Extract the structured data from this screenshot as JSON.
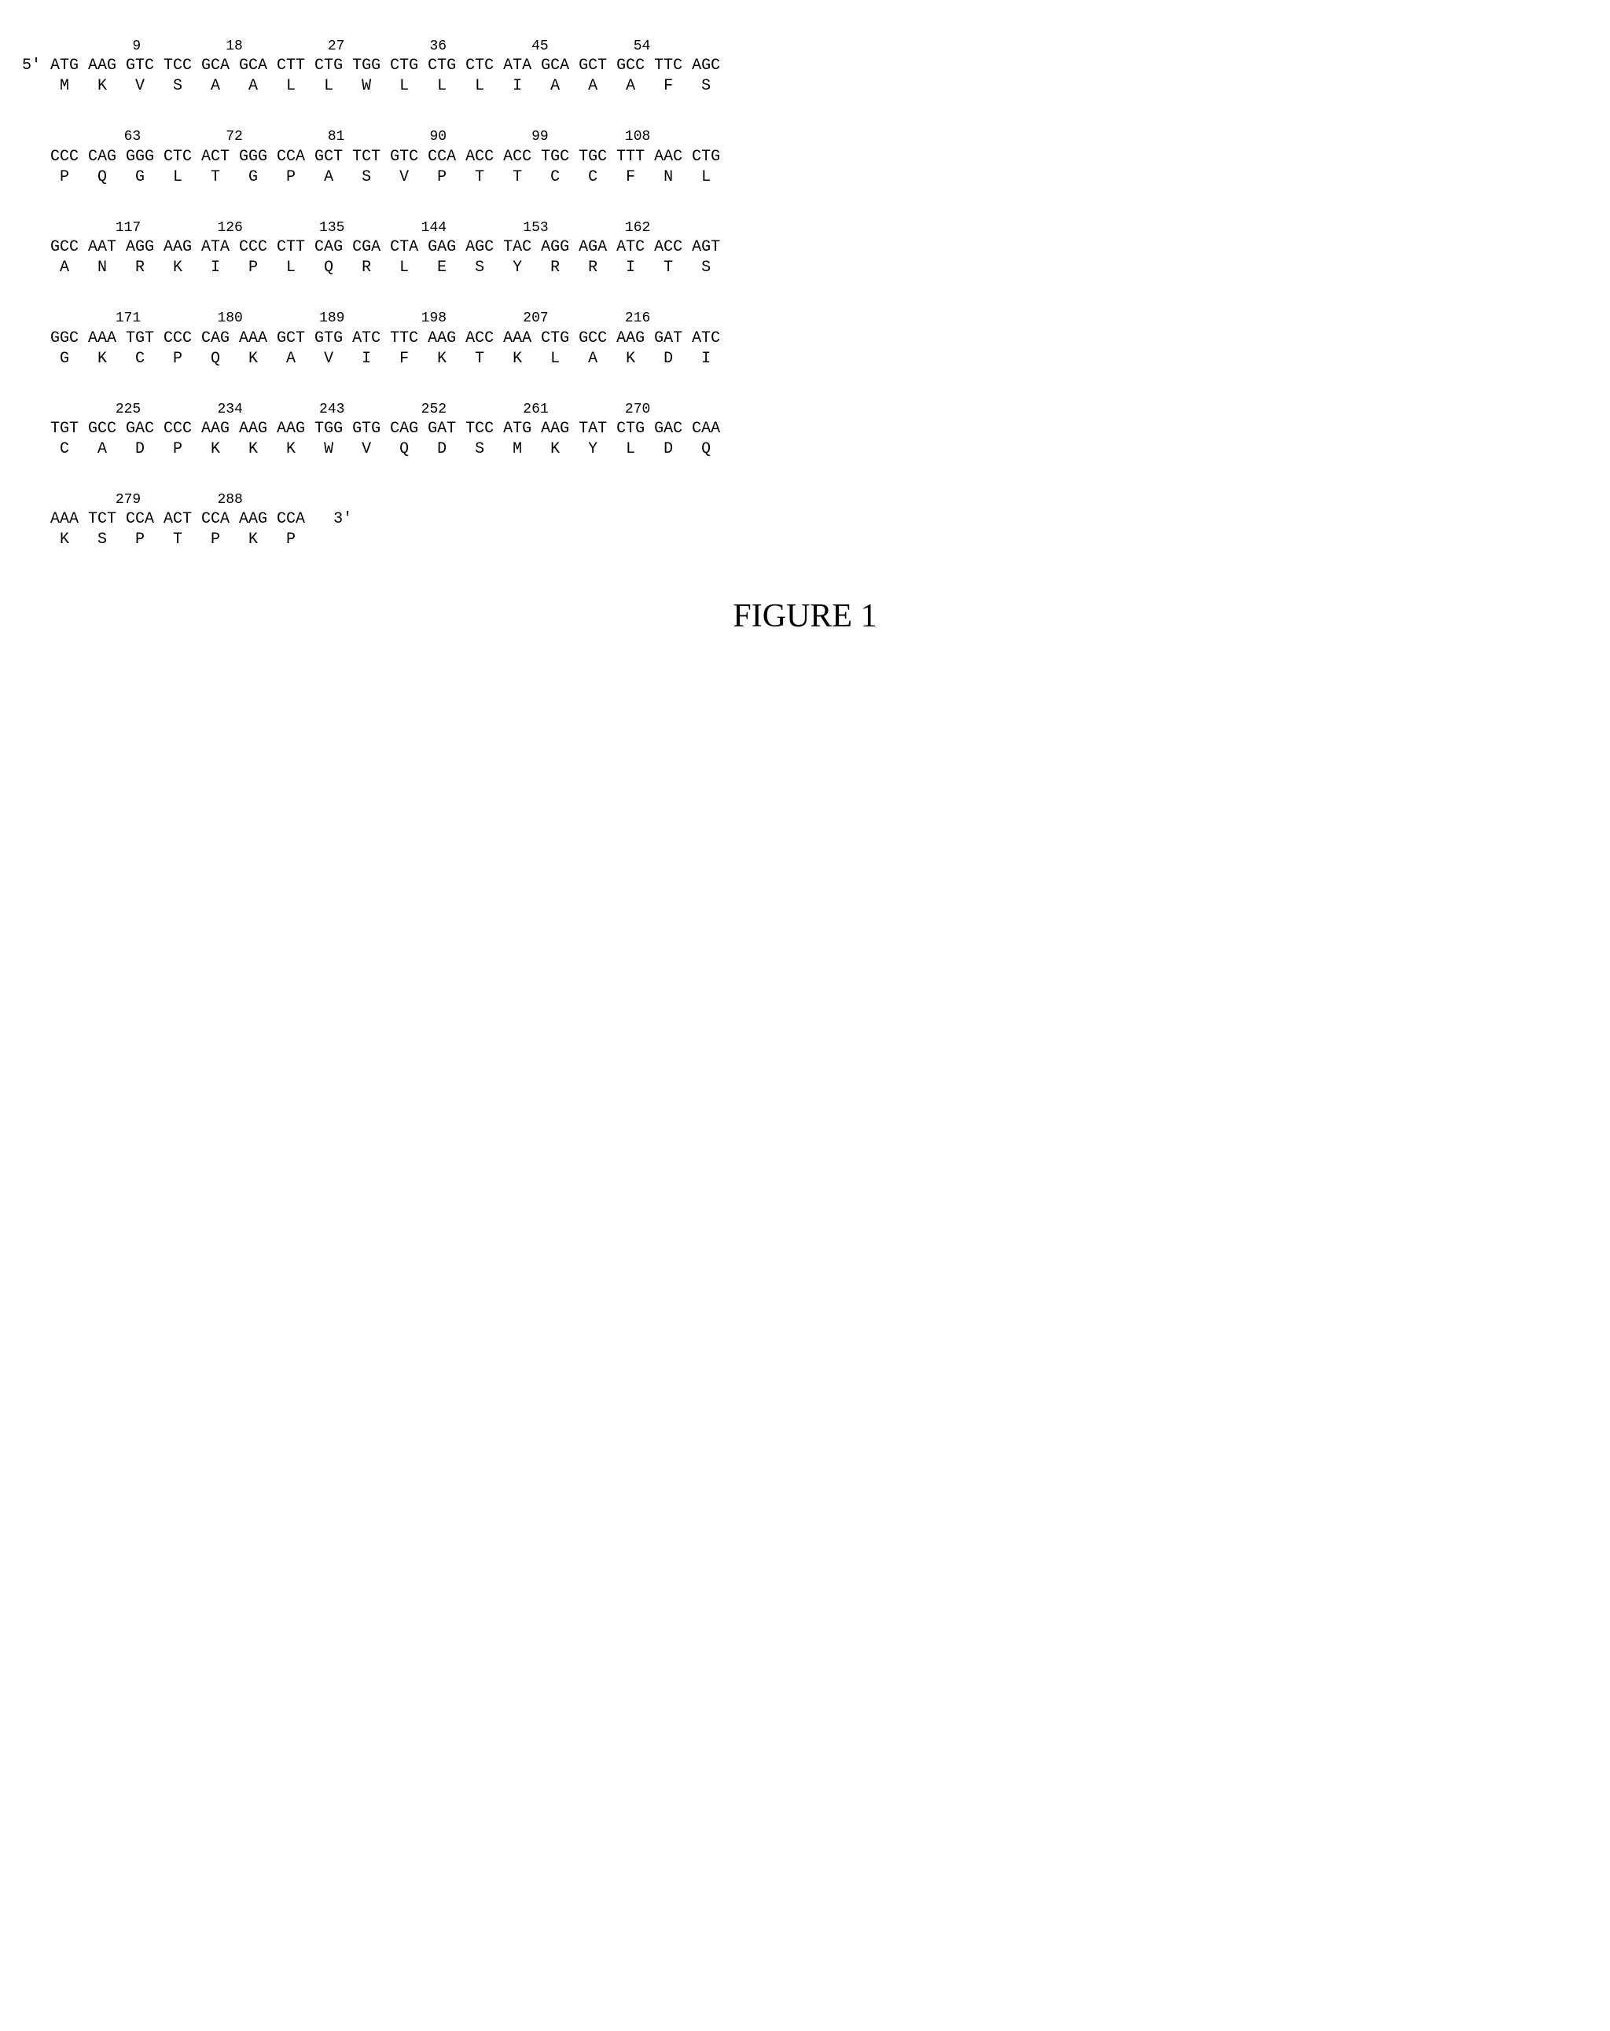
{
  "figure_label": "FIGURE 1",
  "five_prime": "5'",
  "three_prime": "3'",
  "font_family_mono": "Courier New",
  "font_family_serif": "Times New Roman",
  "font_size_codon": 20,
  "font_size_pos": 18,
  "font_size_figure": 42,
  "background_color": "#ffffff",
  "text_color": "#000000",
  "rows": [
    {
      "positions": [
        9,
        18,
        27,
        36,
        45,
        54
      ],
      "codons": [
        "ATG",
        "AAG",
        "GTC",
        "TCC",
        "GCA",
        "GCA",
        "CTT",
        "CTG",
        "TGG",
        "CTG",
        "CTG",
        "CTC",
        "ATA",
        "GCA",
        "GCT",
        "GCC",
        "TTC",
        "AGC"
      ],
      "aas": [
        "M",
        "K",
        "V",
        "S",
        "A",
        "A",
        "L",
        "L",
        "W",
        "L",
        "L",
        "L",
        "I",
        "A",
        "A",
        "A",
        "F",
        "S"
      ],
      "lead_label": "5'"
    },
    {
      "positions": [
        63,
        72,
        81,
        90,
        99,
        108
      ],
      "codons": [
        "CCC",
        "CAG",
        "GGG",
        "CTC",
        "ACT",
        "GGG",
        "CCA",
        "GCT",
        "TCT",
        "GTC",
        "CCA",
        "ACC",
        "ACC",
        "TGC",
        "TGC",
        "TTT",
        "AAC",
        "CTG"
      ],
      "aas": [
        "P",
        "Q",
        "G",
        "L",
        "T",
        "G",
        "P",
        "A",
        "S",
        "V",
        "P",
        "T",
        "T",
        "C",
        "C",
        "F",
        "N",
        "L"
      ]
    },
    {
      "positions": [
        117,
        126,
        135,
        144,
        153,
        162
      ],
      "codons": [
        "GCC",
        "AAT",
        "AGG",
        "AAG",
        "ATA",
        "CCC",
        "CTT",
        "CAG",
        "CGA",
        "CTA",
        "GAG",
        "AGC",
        "TAC",
        "AGG",
        "AGA",
        "ATC",
        "ACC",
        "AGT"
      ],
      "aas": [
        "A",
        "N",
        "R",
        "K",
        "I",
        "P",
        "L",
        "Q",
        "R",
        "L",
        "E",
        "S",
        "Y",
        "R",
        "R",
        "I",
        "T",
        "S"
      ]
    },
    {
      "positions": [
        171,
        180,
        189,
        198,
        207,
        216
      ],
      "codons": [
        "GGC",
        "AAA",
        "TGT",
        "CCC",
        "CAG",
        "AAA",
        "GCT",
        "GTG",
        "ATC",
        "TTC",
        "AAG",
        "ACC",
        "AAA",
        "CTG",
        "GCC",
        "AAG",
        "GAT",
        "ATC"
      ],
      "aas": [
        "G",
        "K",
        "C",
        "P",
        "Q",
        "K",
        "A",
        "V",
        "I",
        "F",
        "K",
        "T",
        "K",
        "L",
        "A",
        "K",
        "D",
        "I"
      ]
    },
    {
      "positions": [
        225,
        234,
        243,
        252,
        261,
        270
      ],
      "codons": [
        "TGT",
        "GCC",
        "GAC",
        "CCC",
        "AAG",
        "AAG",
        "AAG",
        "TGG",
        "GTG",
        "CAG",
        "GAT",
        "TCC",
        "ATG",
        "AAG",
        "TAT",
        "CTG",
        "GAC",
        "CAA"
      ],
      "aas": [
        "C",
        "A",
        "D",
        "P",
        "K",
        "K",
        "K",
        "W",
        "V",
        "Q",
        "D",
        "S",
        "M",
        "K",
        "Y",
        "L",
        "D",
        "Q"
      ]
    },
    {
      "positions": [
        279,
        288
      ],
      "codons": [
        "AAA",
        "TCT",
        "CCA",
        "ACT",
        "CCA",
        "AAG",
        "CCA"
      ],
      "aas": [
        "K",
        "S",
        "P",
        "T",
        "P",
        "K",
        "P"
      ],
      "trail_label": "3'"
    }
  ]
}
